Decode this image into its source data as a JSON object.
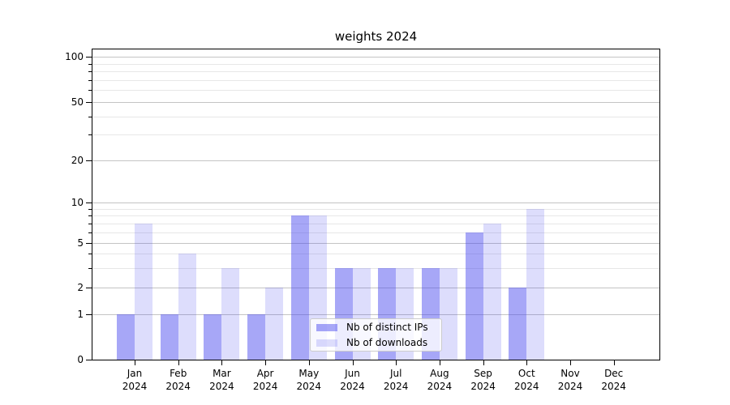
{
  "chart_data": {
    "type": "bar",
    "title": "weights 2024",
    "categories": [
      "Jan",
      "Feb",
      "Mar",
      "Apr",
      "May",
      "Jun",
      "Jul",
      "Aug",
      "Sep",
      "Oct",
      "Nov",
      "Dec"
    ],
    "year_label": "2024",
    "series": [
      {
        "name": "Nb of distinct IPs",
        "color": "rgba(68,68,238,0.47)",
        "values": [
          1,
          1,
          1,
          1,
          8,
          3,
          3,
          3,
          6,
          2,
          0,
          0
        ]
      },
      {
        "name": "Nb of downloads",
        "color": "rgba(68,68,238,0.18)",
        "values": [
          7,
          4,
          3,
          2,
          8,
          3,
          3,
          3,
          7,
          9,
          0,
          0
        ]
      }
    ],
    "y_axis": {
      "scale": "symlog",
      "range": [
        0,
        100
      ],
      "major_ticks": [
        0,
        1,
        2,
        5,
        10,
        20,
        50,
        100
      ],
      "major_tick_labels": [
        "0",
        "1",
        "2",
        "5",
        "10",
        "20",
        "50",
        "100"
      ],
      "minor_ticks": [
        3,
        4,
        6,
        7,
        8,
        9,
        30,
        40,
        60,
        70,
        80,
        90
      ]
    },
    "x_axis": {
      "tick_labels_line1": [
        "Jan",
        "Feb",
        "Mar",
        "Apr",
        "May",
        "Jun",
        "Jul",
        "Aug",
        "Sep",
        "Oct",
        "Nov",
        "Dec"
      ],
      "tick_labels_line2": "2024"
    },
    "legend": {
      "position": "lower-center"
    },
    "grid": {
      "major": true,
      "minor": true
    },
    "colors": {
      "bar_distinct_ips": "rgba(68,68,238,0.47)",
      "bar_downloads": "rgba(68,68,238,0.18)",
      "major_grid": "#c4c4c4",
      "minor_grid": "#e7e7e7",
      "axis": "#000000",
      "legend_border": "#cccccc"
    }
  }
}
